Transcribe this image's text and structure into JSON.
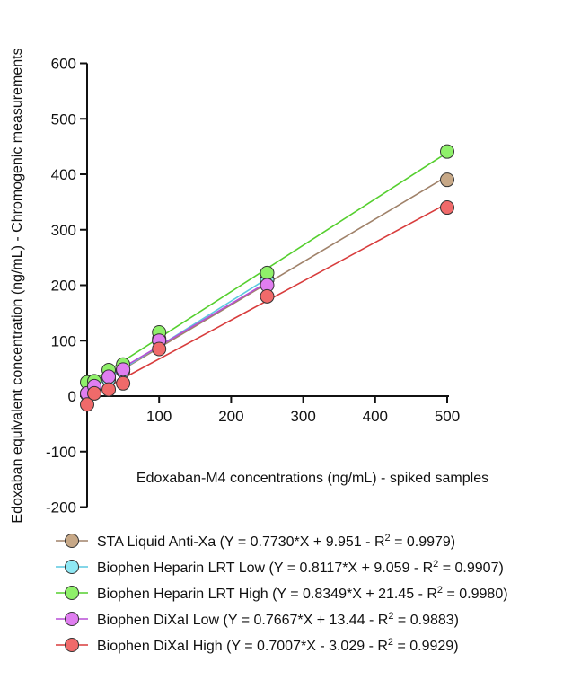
{
  "chart_data": {
    "type": "scatter",
    "xlabel": "Edoxaban-M4 concentrations (ng/mL) - spiked samples",
    "ylabel": "Edoxaban equivalent concentration (ng/mL) - Chromogenic measurements",
    "xlim": [
      0,
      500
    ],
    "ylim": [
      -200,
      600
    ],
    "xticks": [
      100,
      200,
      300,
      400,
      500
    ],
    "yticks": [
      -200,
      -100,
      0,
      100,
      200,
      300,
      400,
      500,
      600
    ],
    "grid": false,
    "legend_position": "bottom",
    "series": [
      {
        "name": "STA Liquid Anti-Xa",
        "legend_prefix": "STA Liquid Anti-Xa (Y = 0.7730*X + 9.951 - R",
        "legend_suffix": " = 0.9979)",
        "color": "#c7a887",
        "line_color": "#a0826a",
        "fit": {
          "slope": 0.773,
          "intercept": 9.951,
          "r2": 0.9979
        },
        "x": [
          0,
          10,
          30,
          50,
          100,
          250,
          500
        ],
        "y": [
          5,
          15,
          32,
          48,
          103,
          210,
          390
        ]
      },
      {
        "name": "Biophen Heparin LRT Low",
        "legend_prefix": "Biophen Heparin LRT Low (Y = 0.8117*X + 9.059 - R",
        "legend_suffix": " = 0.9907)",
        "color": "#8fe8f4",
        "line_color": "#5cc9e0",
        "fit": {
          "slope": 0.8117,
          "intercept": 9.059,
          "r2": 0.9907
        },
        "x": [
          0,
          10,
          30,
          50,
          100,
          250
        ],
        "y": [
          3,
          12,
          30,
          45,
          100,
          210
        ]
      },
      {
        "name": "Biophen Heparin LRT High",
        "legend_prefix": "Biophen Heparin LRT High (Y = 0.8349*X + 21.45 - R",
        "legend_suffix": " = 0.9980)",
        "color": "#8ff06a",
        "line_color": "#55cf2e",
        "fit": {
          "slope": 0.8349,
          "intercept": 21.45,
          "r2": 0.998
        },
        "x": [
          0,
          10,
          30,
          50,
          100,
          250,
          500
        ],
        "y": [
          25,
          27,
          47,
          57,
          115,
          222,
          441
        ]
      },
      {
        "name": "Biophen DiXaI Low",
        "legend_prefix": "Biophen DiXaI Low (Y = 0.7667*X + 13.44 - R",
        "legend_suffix": " = 0.9883)",
        "color": "#e07ef0",
        "line_color": "#b84fd6",
        "fit": {
          "slope": 0.7667,
          "intercept": 13.44,
          "r2": 0.9883
        },
        "x": [
          0,
          10,
          30,
          50,
          100,
          250
        ],
        "y": [
          5,
          18,
          35,
          48,
          100,
          200
        ]
      },
      {
        "name": "Biophen DiXaI High",
        "legend_prefix": "Biophen DiXaI High (Y = 0.7007*X - 3.029 - R",
        "legend_suffix": " = 0.9929)",
        "color": "#f06a6a",
        "line_color": "#d83c3c",
        "fit": {
          "slope": 0.7007,
          "intercept": -3.029,
          "r2": 0.9929
        },
        "x": [
          0,
          10,
          30,
          50,
          100,
          250,
          500
        ],
        "y": [
          -15,
          5,
          12,
          23,
          85,
          180,
          340
        ]
      }
    ],
    "legend_superscript": "2"
  }
}
